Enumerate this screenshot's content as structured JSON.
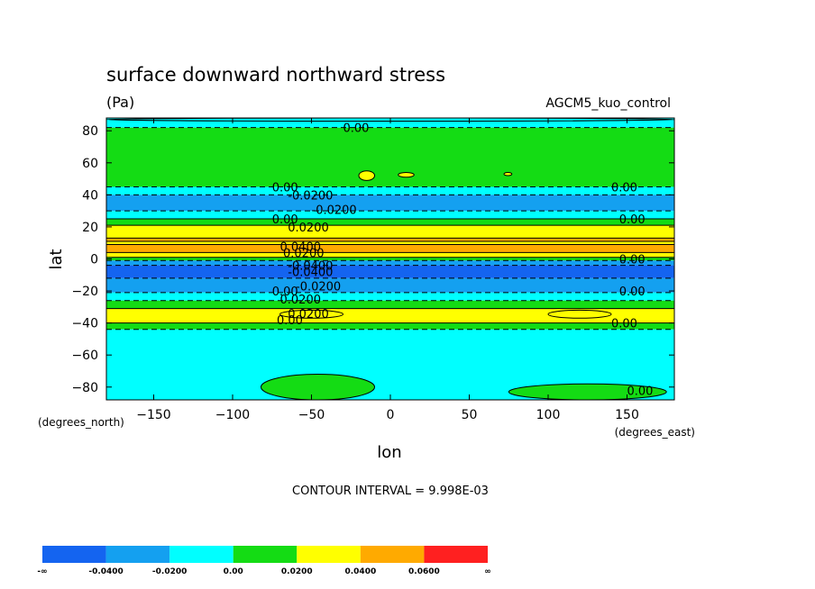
{
  "chart_data": {
    "type": "heatmap",
    "title": "surface downward northward stress",
    "units": "(Pa)",
    "model": "AGCM5_kuo_control",
    "xlabel": "lon",
    "ylabel": "lat",
    "x_unit": "(degrees_east)",
    "y_unit": "(degrees_north)",
    "xlim": [
      -180,
      180
    ],
    "ylim": [
      -88,
      88
    ],
    "x_ticks": [
      -150,
      -100,
      -50,
      0,
      50,
      100,
      150
    ],
    "y_ticks": [
      80,
      60,
      40,
      20,
      0,
      -20,
      -40,
      -60,
      -80
    ],
    "contour_interval_label": "CONTOUR INTERVAL = 9.998E-03",
    "contour_interval": 0.009998,
    "legend": {
      "levels": [
        "-∞",
        "-0.0400",
        "-0.0200",
        "0.00",
        "0.0200",
        "0.0400",
        "0.0600",
        "∞"
      ],
      "colors": [
        "#1464f0",
        "#14a0f0",
        "#00ffff",
        "#14dc14",
        "#ffff00",
        "#ffaa00",
        "#ff2020"
      ]
    },
    "zonal_bands": [
      {
        "lat_from": 88,
        "lat_to": 82,
        "value": -0.01
      },
      {
        "lat_from": 82,
        "lat_to": 45,
        "value": 0.005
      },
      {
        "lat_from": 45,
        "lat_to": 40,
        "value": -0.01
      },
      {
        "lat_from": 40,
        "lat_to": 30,
        "value": -0.025
      },
      {
        "lat_from": 30,
        "lat_to": 25,
        "value": -0.01
      },
      {
        "lat_from": 25,
        "lat_to": 21,
        "value": 0.01
      },
      {
        "lat_from": 21,
        "lat_to": 13,
        "value": 0.03
      },
      {
        "lat_from": 13,
        "lat_to": 11,
        "value": 0.045
      },
      {
        "lat_from": 11,
        "lat_to": 9,
        "value": 0.03
      },
      {
        "lat_from": 9,
        "lat_to": 4,
        "value": 0.045
      },
      {
        "lat_from": 4,
        "lat_to": 1,
        "value": 0.025
      },
      {
        "lat_from": 1,
        "lat_to": -1,
        "value": 0.005
      },
      {
        "lat_from": -1,
        "lat_to": -4,
        "value": -0.03
      },
      {
        "lat_from": -4,
        "lat_to": -12,
        "value": -0.045
      },
      {
        "lat_from": -12,
        "lat_to": -21,
        "value": -0.025
      },
      {
        "lat_from": -21,
        "lat_to": -26,
        "value": -0.01
      },
      {
        "lat_from": -26,
        "lat_to": -31,
        "value": 0.005
      },
      {
        "lat_from": -31,
        "lat_to": -40,
        "value": 0.025
      },
      {
        "lat_from": -40,
        "lat_to": -44,
        "value": 0.005
      },
      {
        "lat_from": -44,
        "lat_to": -88,
        "value": -0.01
      }
    ],
    "patches": [
      {
        "lon_range": [
          -180,
          180
        ],
        "lat_range": [
          86,
          88
        ],
        "value": -0.01
      },
      {
        "lon_range": [
          -82,
          -10
        ],
        "lat_range": [
          -88,
          -72
        ],
        "value": 0.005
      },
      {
        "lon_range": [
          75,
          175
        ],
        "lat_range": [
          -88,
          -78
        ],
        "value": 0.005
      },
      {
        "lon_range": [
          -20,
          -10
        ],
        "lat_range": [
          49,
          55
        ],
        "value": 0.025
      },
      {
        "lon_range": [
          5,
          15
        ],
        "lat_range": [
          51,
          54
        ],
        "value": 0.025
      },
      {
        "lon_range": [
          72,
          77
        ],
        "lat_range": [
          52,
          54
        ],
        "value": 0.025
      },
      {
        "lon_range": [
          -70,
          -30
        ],
        "lat_range": [
          -37,
          -32
        ],
        "value": 0.035
      },
      {
        "lon_range": [
          100,
          140
        ],
        "lat_range": [
          -37,
          -32
        ],
        "value": 0.035
      }
    ],
    "contour_labels": [
      {
        "text": "0.00",
        "lon": -30,
        "lat": 82
      },
      {
        "text": "0.00",
        "lon": -75,
        "lat": 45
      },
      {
        "text": "-0.0200",
        "lon": -65,
        "lat": 40
      },
      {
        "text": "0.00",
        "lon": 140,
        "lat": 45
      },
      {
        "text": "-0.0200",
        "lon": -50,
        "lat": 31
      },
      {
        "text": "0.00",
        "lon": -75,
        "lat": 25
      },
      {
        "text": "0.0200",
        "lon": -65,
        "lat": 20
      },
      {
        "text": "0.00",
        "lon": 145,
        "lat": 25
      },
      {
        "text": "0.0400",
        "lon": -70,
        "lat": 8
      },
      {
        "text": "0.0200",
        "lon": -68,
        "lat": 4
      },
      {
        "text": "0.00",
        "lon": 145,
        "lat": 0
      },
      {
        "text": "-0.0400",
        "lon": -65,
        "lat": -4
      },
      {
        "text": "-0.0400",
        "lon": -65,
        "lat": -8
      },
      {
        "text": "-0.0200",
        "lon": -60,
        "lat": -17
      },
      {
        "text": "0.00",
        "lon": -75,
        "lat": -20
      },
      {
        "text": "0.00",
        "lon": 145,
        "lat": -20
      },
      {
        "text": "0.0200",
        "lon": -70,
        "lat": -25
      },
      {
        "text": "0.0200",
        "lon": -65,
        "lat": -34
      },
      {
        "text": "0.00",
        "lon": -72,
        "lat": -38
      },
      {
        "text": "0.00",
        "lon": 140,
        "lat": -40
      },
      {
        "text": "0.00",
        "lon": 150,
        "lat": -82
      }
    ]
  }
}
